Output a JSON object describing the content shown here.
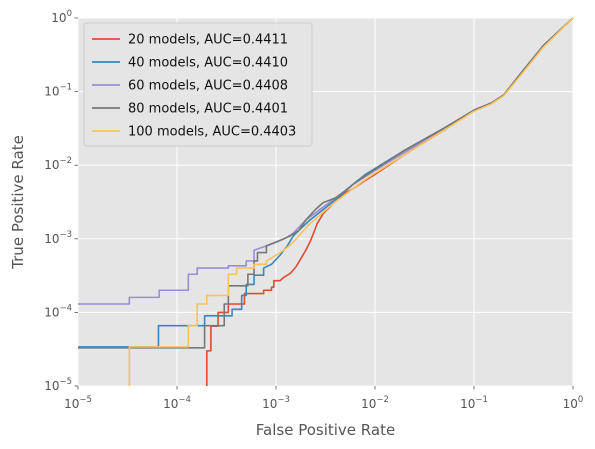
{
  "chart_data": {
    "type": "line",
    "title": "",
    "xlabel": "False Positive Rate",
    "ylabel": "True Positive Rate",
    "xscale": "log",
    "yscale": "log",
    "xlim": [
      1e-05,
      1
    ],
    "ylim": [
      1e-05,
      1
    ],
    "x_ticks": [
      {
        "value": 1e-05,
        "base": "10",
        "exp": "−5"
      },
      {
        "value": 0.0001,
        "base": "10",
        "exp": "−4"
      },
      {
        "value": 0.001,
        "base": "10",
        "exp": "−3"
      },
      {
        "value": 0.01,
        "base": "10",
        "exp": "−2"
      },
      {
        "value": 0.1,
        "base": "10",
        "exp": "−1"
      },
      {
        "value": 1,
        "base": "10",
        "exp": "0"
      }
    ],
    "y_ticks": [
      {
        "value": 1e-05,
        "base": "10",
        "exp": "−5"
      },
      {
        "value": 0.0001,
        "base": "10",
        "exp": "−4"
      },
      {
        "value": 0.001,
        "base": "10",
        "exp": "−3"
      },
      {
        "value": 0.01,
        "base": "10",
        "exp": "−2"
      },
      {
        "value": 0.1,
        "base": "10",
        "exp": "−1"
      },
      {
        "value": 1,
        "base": "10",
        "exp": "0"
      }
    ],
    "grid": true,
    "legend_position": "top-left",
    "background_color": "#e5e5e5",
    "series": [
      {
        "name": "20 models, AUC=0.4411",
        "color": "#e24a33",
        "points": [
          [
            0.0002,
            1e-05
          ],
          [
            0.0002,
            3e-05
          ],
          [
            0.00022,
            3e-05
          ],
          [
            0.00022,
            6.5e-05
          ],
          [
            0.00026,
            6.5e-05
          ],
          [
            0.00026,
            0.0001
          ],
          [
            0.00033,
            0.0001
          ],
          [
            0.00033,
            0.00013
          ],
          [
            0.00048,
            0.00013
          ],
          [
            0.00048,
            0.00018
          ],
          [
            0.00075,
            0.00018
          ],
          [
            0.00075,
            0.0002
          ],
          [
            0.0009,
            0.0002
          ],
          [
            0.0009,
            0.00022
          ],
          [
            0.00095,
            0.00022
          ],
          [
            0.00095,
            0.00027
          ],
          [
            0.0011,
            0.00027
          ],
          [
            0.0012,
            0.0003
          ],
          [
            0.0014,
            0.00034
          ],
          [
            0.0016,
            0.00042
          ],
          [
            0.0018,
            0.00055
          ],
          [
            0.002,
            0.0007
          ],
          [
            0.0022,
            0.0009
          ],
          [
            0.0024,
            0.0012
          ],
          [
            0.0026,
            0.0016
          ],
          [
            0.003,
            0.0022
          ],
          [
            0.0035,
            0.0027
          ],
          [
            0.004,
            0.0033
          ],
          [
            0.005,
            0.0042
          ],
          [
            0.006,
            0.0048
          ],
          [
            0.008,
            0.0062
          ],
          [
            0.01,
            0.0075
          ],
          [
            0.02,
            0.014
          ],
          [
            0.05,
            0.03
          ],
          [
            0.1,
            0.055
          ],
          [
            0.15,
            0.07
          ],
          [
            0.2,
            0.09
          ],
          [
            0.3,
            0.18
          ],
          [
            0.5,
            0.42
          ],
          [
            1,
            1
          ]
        ]
      },
      {
        "name": "40 models, AUC=0.4410",
        "color": "#348abd",
        "points": [
          [
            1e-05,
            3.4e-05
          ],
          [
            6.5e-05,
            3.4e-05
          ],
          [
            6.5e-05,
            6.6e-05
          ],
          [
            0.00019,
            6.6e-05
          ],
          [
            0.00019,
            9e-05
          ],
          [
            0.00036,
            9e-05
          ],
          [
            0.00036,
            0.00011
          ],
          [
            0.00045,
            0.00011
          ],
          [
            0.00045,
            0.00017
          ],
          [
            0.0005,
            0.00017
          ],
          [
            0.0005,
            0.00024
          ],
          [
            0.0006,
            0.00024
          ],
          [
            0.0006,
            0.00032
          ],
          [
            0.00075,
            0.00032
          ],
          [
            0.00075,
            0.0004
          ],
          [
            0.0009,
            0.00045
          ],
          [
            0.0011,
            0.0006
          ],
          [
            0.0013,
            0.0008
          ],
          [
            0.0015,
            0.0011
          ],
          [
            0.0018,
            0.0014
          ],
          [
            0.0022,
            0.0018
          ],
          [
            0.003,
            0.0025
          ],
          [
            0.004,
            0.0034
          ],
          [
            0.005,
            0.0044
          ],
          [
            0.006,
            0.0055
          ],
          [
            0.008,
            0.0075
          ],
          [
            0.01,
            0.009
          ],
          [
            0.02,
            0.016
          ],
          [
            0.05,
            0.032
          ],
          [
            0.1,
            0.056
          ],
          [
            0.15,
            0.07
          ],
          [
            0.2,
            0.09
          ],
          [
            0.3,
            0.18
          ],
          [
            0.5,
            0.42
          ],
          [
            1,
            1
          ]
        ]
      },
      {
        "name": "60 models, AUC=0.4408",
        "color": "#988ed5",
        "points": [
          [
            1e-05,
            0.00013
          ],
          [
            3.3e-05,
            0.00013
          ],
          [
            3.3e-05,
            0.00016
          ],
          [
            6.6e-05,
            0.00016
          ],
          [
            6.6e-05,
            0.0002
          ],
          [
            0.00013,
            0.0002
          ],
          [
            0.00013,
            0.00033
          ],
          [
            0.00016,
            0.00033
          ],
          [
            0.00016,
            0.0004
          ],
          [
            0.00033,
            0.0004
          ],
          [
            0.00033,
            0.00043
          ],
          [
            0.0005,
            0.00043
          ],
          [
            0.0005,
            0.0005
          ],
          [
            0.0006,
            0.0005
          ],
          [
            0.0006,
            0.0007
          ],
          [
            0.0008,
            0.0008
          ],
          [
            0.001,
            0.0009
          ],
          [
            0.0013,
            0.00105
          ],
          [
            0.0015,
            0.0012
          ],
          [
            0.002,
            0.0018
          ],
          [
            0.003,
            0.0027
          ],
          [
            0.004,
            0.0036
          ],
          [
            0.005,
            0.0045
          ],
          [
            0.006,
            0.0055
          ],
          [
            0.008,
            0.007
          ],
          [
            0.01,
            0.0085
          ],
          [
            0.02,
            0.015
          ],
          [
            0.05,
            0.031
          ],
          [
            0.1,
            0.056
          ],
          [
            0.15,
            0.07
          ],
          [
            0.2,
            0.09
          ],
          [
            0.3,
            0.18
          ],
          [
            0.5,
            0.42
          ],
          [
            1,
            1
          ]
        ]
      },
      {
        "name": "80 models, AUC=0.4401",
        "color": "#777777",
        "points": [
          [
            1e-05,
            3.3e-05
          ],
          [
            0.00019,
            3.3e-05
          ],
          [
            0.00019,
            6.6e-05
          ],
          [
            0.0003,
            6.6e-05
          ],
          [
            0.0003,
            0.00013
          ],
          [
            0.00033,
            0.00013
          ],
          [
            0.00033,
            0.00023
          ],
          [
            0.00052,
            0.00023
          ],
          [
            0.00052,
            0.00033
          ],
          [
            0.0006,
            0.00033
          ],
          [
            0.0006,
            0.0005
          ],
          [
            0.00065,
            0.0005
          ],
          [
            0.00065,
            0.00065
          ],
          [
            0.0008,
            0.00065
          ],
          [
            0.0008,
            0.0008
          ],
          [
            0.001,
            0.0009
          ],
          [
            0.0012,
            0.001
          ],
          [
            0.0014,
            0.0011
          ],
          [
            0.0017,
            0.0013
          ],
          [
            0.002,
            0.0018
          ],
          [
            0.0025,
            0.0025
          ],
          [
            0.003,
            0.0031
          ],
          [
            0.004,
            0.0036
          ],
          [
            0.005,
            0.0045
          ],
          [
            0.006,
            0.0055
          ],
          [
            0.008,
            0.0072
          ],
          [
            0.01,
            0.0088
          ],
          [
            0.02,
            0.016
          ],
          [
            0.05,
            0.032
          ],
          [
            0.1,
            0.056
          ],
          [
            0.15,
            0.07
          ],
          [
            0.2,
            0.09
          ],
          [
            0.3,
            0.18
          ],
          [
            0.5,
            0.42
          ],
          [
            1,
            1
          ]
        ]
      },
      {
        "name": "100 models, AUC=0.4403",
        "color": "#fbc15e",
        "points": [
          [
            3.3e-05,
            1e-05
          ],
          [
            3.3e-05,
            3.4e-05
          ],
          [
            0.00013,
            3.4e-05
          ],
          [
            0.00013,
            6.6e-05
          ],
          [
            0.00016,
            6.6e-05
          ],
          [
            0.00016,
            0.00013
          ],
          [
            0.0002,
            0.00013
          ],
          [
            0.0002,
            0.00017
          ],
          [
            0.00033,
            0.00017
          ],
          [
            0.00033,
            0.00033
          ],
          [
            0.0004,
            0.00033
          ],
          [
            0.0004,
            0.0004
          ],
          [
            0.0006,
            0.0004
          ],
          [
            0.0006,
            0.00045
          ],
          [
            0.0008,
            0.00045
          ],
          [
            0.0008,
            0.0005
          ],
          [
            0.001,
            0.0006
          ],
          [
            0.0012,
            0.0007
          ],
          [
            0.0015,
            0.0009
          ],
          [
            0.0018,
            0.0012
          ],
          [
            0.0022,
            0.0016
          ],
          [
            0.003,
            0.0023
          ],
          [
            0.004,
            0.0032
          ],
          [
            0.005,
            0.004
          ],
          [
            0.006,
            0.0048
          ],
          [
            0.008,
            0.0064
          ],
          [
            0.01,
            0.0078
          ],
          [
            0.02,
            0.014
          ],
          [
            0.05,
            0.03
          ],
          [
            0.1,
            0.054
          ],
          [
            0.15,
            0.068
          ],
          [
            0.2,
            0.088
          ],
          [
            0.3,
            0.17
          ],
          [
            0.5,
            0.4
          ],
          [
            1,
            1
          ]
        ]
      }
    ]
  }
}
